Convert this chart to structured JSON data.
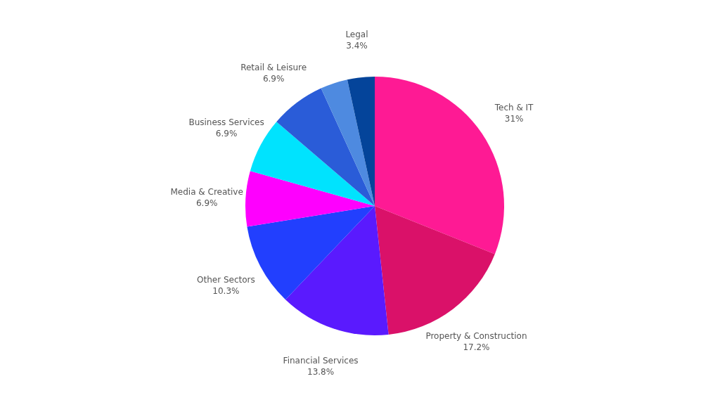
{
  "chart_data": {
    "type": "pie",
    "categories": [
      "Tech & IT",
      "Property & Construction",
      "Financial Services",
      "Other Sectors",
      "Media & Creative",
      "Business Services",
      "Retail & Leisure",
      null,
      "Legal"
    ],
    "values": [
      31,
      17.2,
      13.8,
      10.3,
      6.9,
      6.9,
      6.9,
      3.4,
      3.4
    ],
    "value_labels": [
      "31%",
      "17.2%",
      "13.8%",
      "10.3%",
      "6.9%",
      "6.9%",
      "6.9%",
      null,
      "3.4%"
    ],
    "colors": [
      "#fe1a94",
      "#da1169",
      "#5a1afe",
      "#223ffe",
      "#fe00fe",
      "#00e3fe",
      "#2a5cd8",
      "#4e8ae0",
      "#04449a"
    ]
  }
}
